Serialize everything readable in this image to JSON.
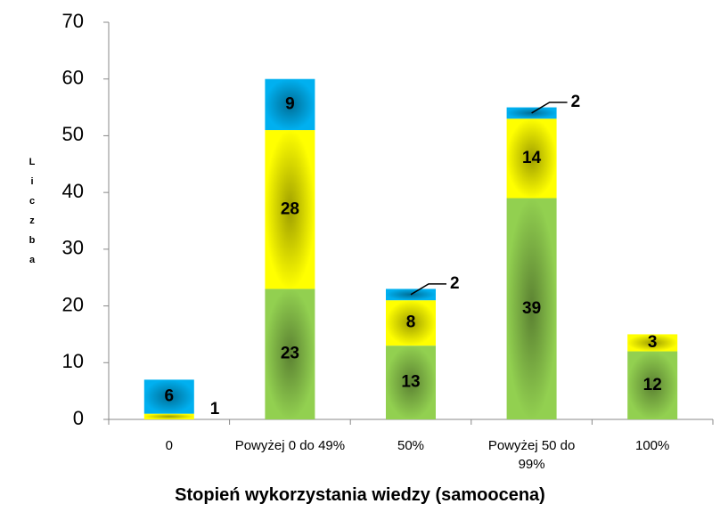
{
  "chart_data": {
    "type": "stacked-bar",
    "x_label": "Stopień wykorzystania wiedzy (samoocena)",
    "y_label": "Liczba",
    "categories": [
      "0",
      "Powyżej 0 do 49%",
      "50%",
      "Powyżej 50 do 99%",
      "100%"
    ],
    "series": [
      {
        "color": "#92d050",
        "values": [
          0,
          23,
          13,
          39,
          12
        ]
      },
      {
        "color": "#ffff00",
        "values": [
          1,
          28,
          8,
          14,
          3
        ]
      },
      {
        "color": "#00b0f0",
        "values": [
          6,
          9,
          2,
          2,
          0
        ]
      }
    ],
    "ylim": [
      0,
      70
    ],
    "yticks": [
      0,
      10,
      20,
      30,
      40,
      50,
      60,
      70
    ],
    "grid": false
  }
}
